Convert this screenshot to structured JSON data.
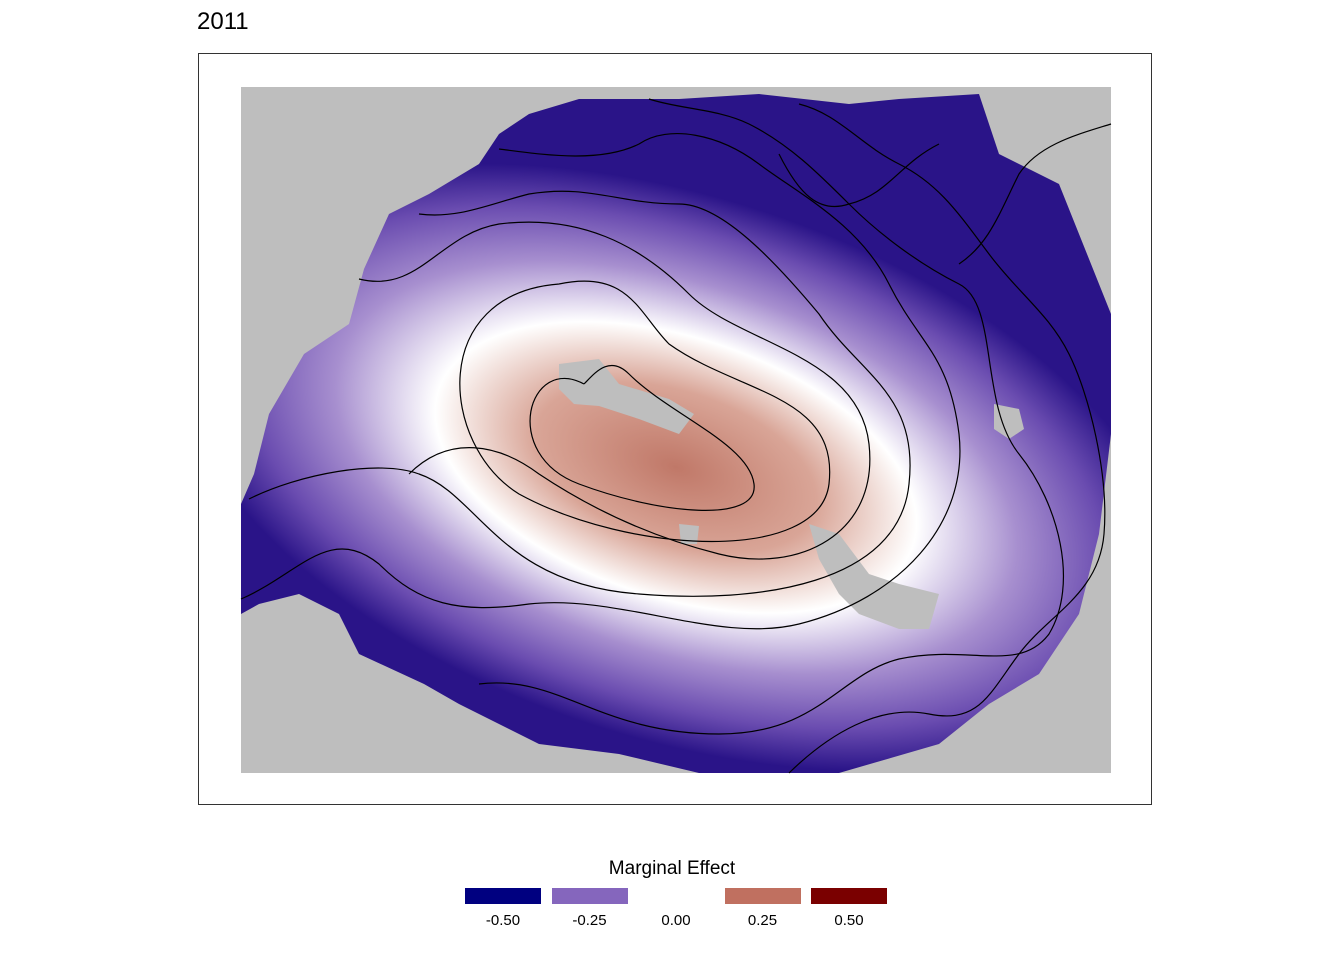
{
  "title": "2011",
  "chart_data": {
    "type": "heatmap",
    "title": "2011",
    "description_fill": "smooth spatial surface with contour lines",
    "color_scale": {
      "min": -0.5,
      "max": 0.5,
      "low_color": "#000080",
      "mid_color": "#ffffff",
      "high_color": "#7a0000",
      "na_color": "#bebebe"
    },
    "legend": {
      "title": "Marginal Effect",
      "position": "bottom",
      "breaks": [
        {
          "label": "-0.50",
          "value": -0.5,
          "color": "#000080"
        },
        {
          "label": "-0.25",
          "value": -0.25,
          "color": "#8566bd"
        },
        {
          "label": "0.00",
          "value": 0.0,
          "color": "#ffffff"
        },
        {
          "label": "0.25",
          "value": 0.25,
          "color": "#c07060"
        },
        {
          "label": "0.50",
          "value": 0.5,
          "color": "#7a0000"
        }
      ]
    }
  }
}
